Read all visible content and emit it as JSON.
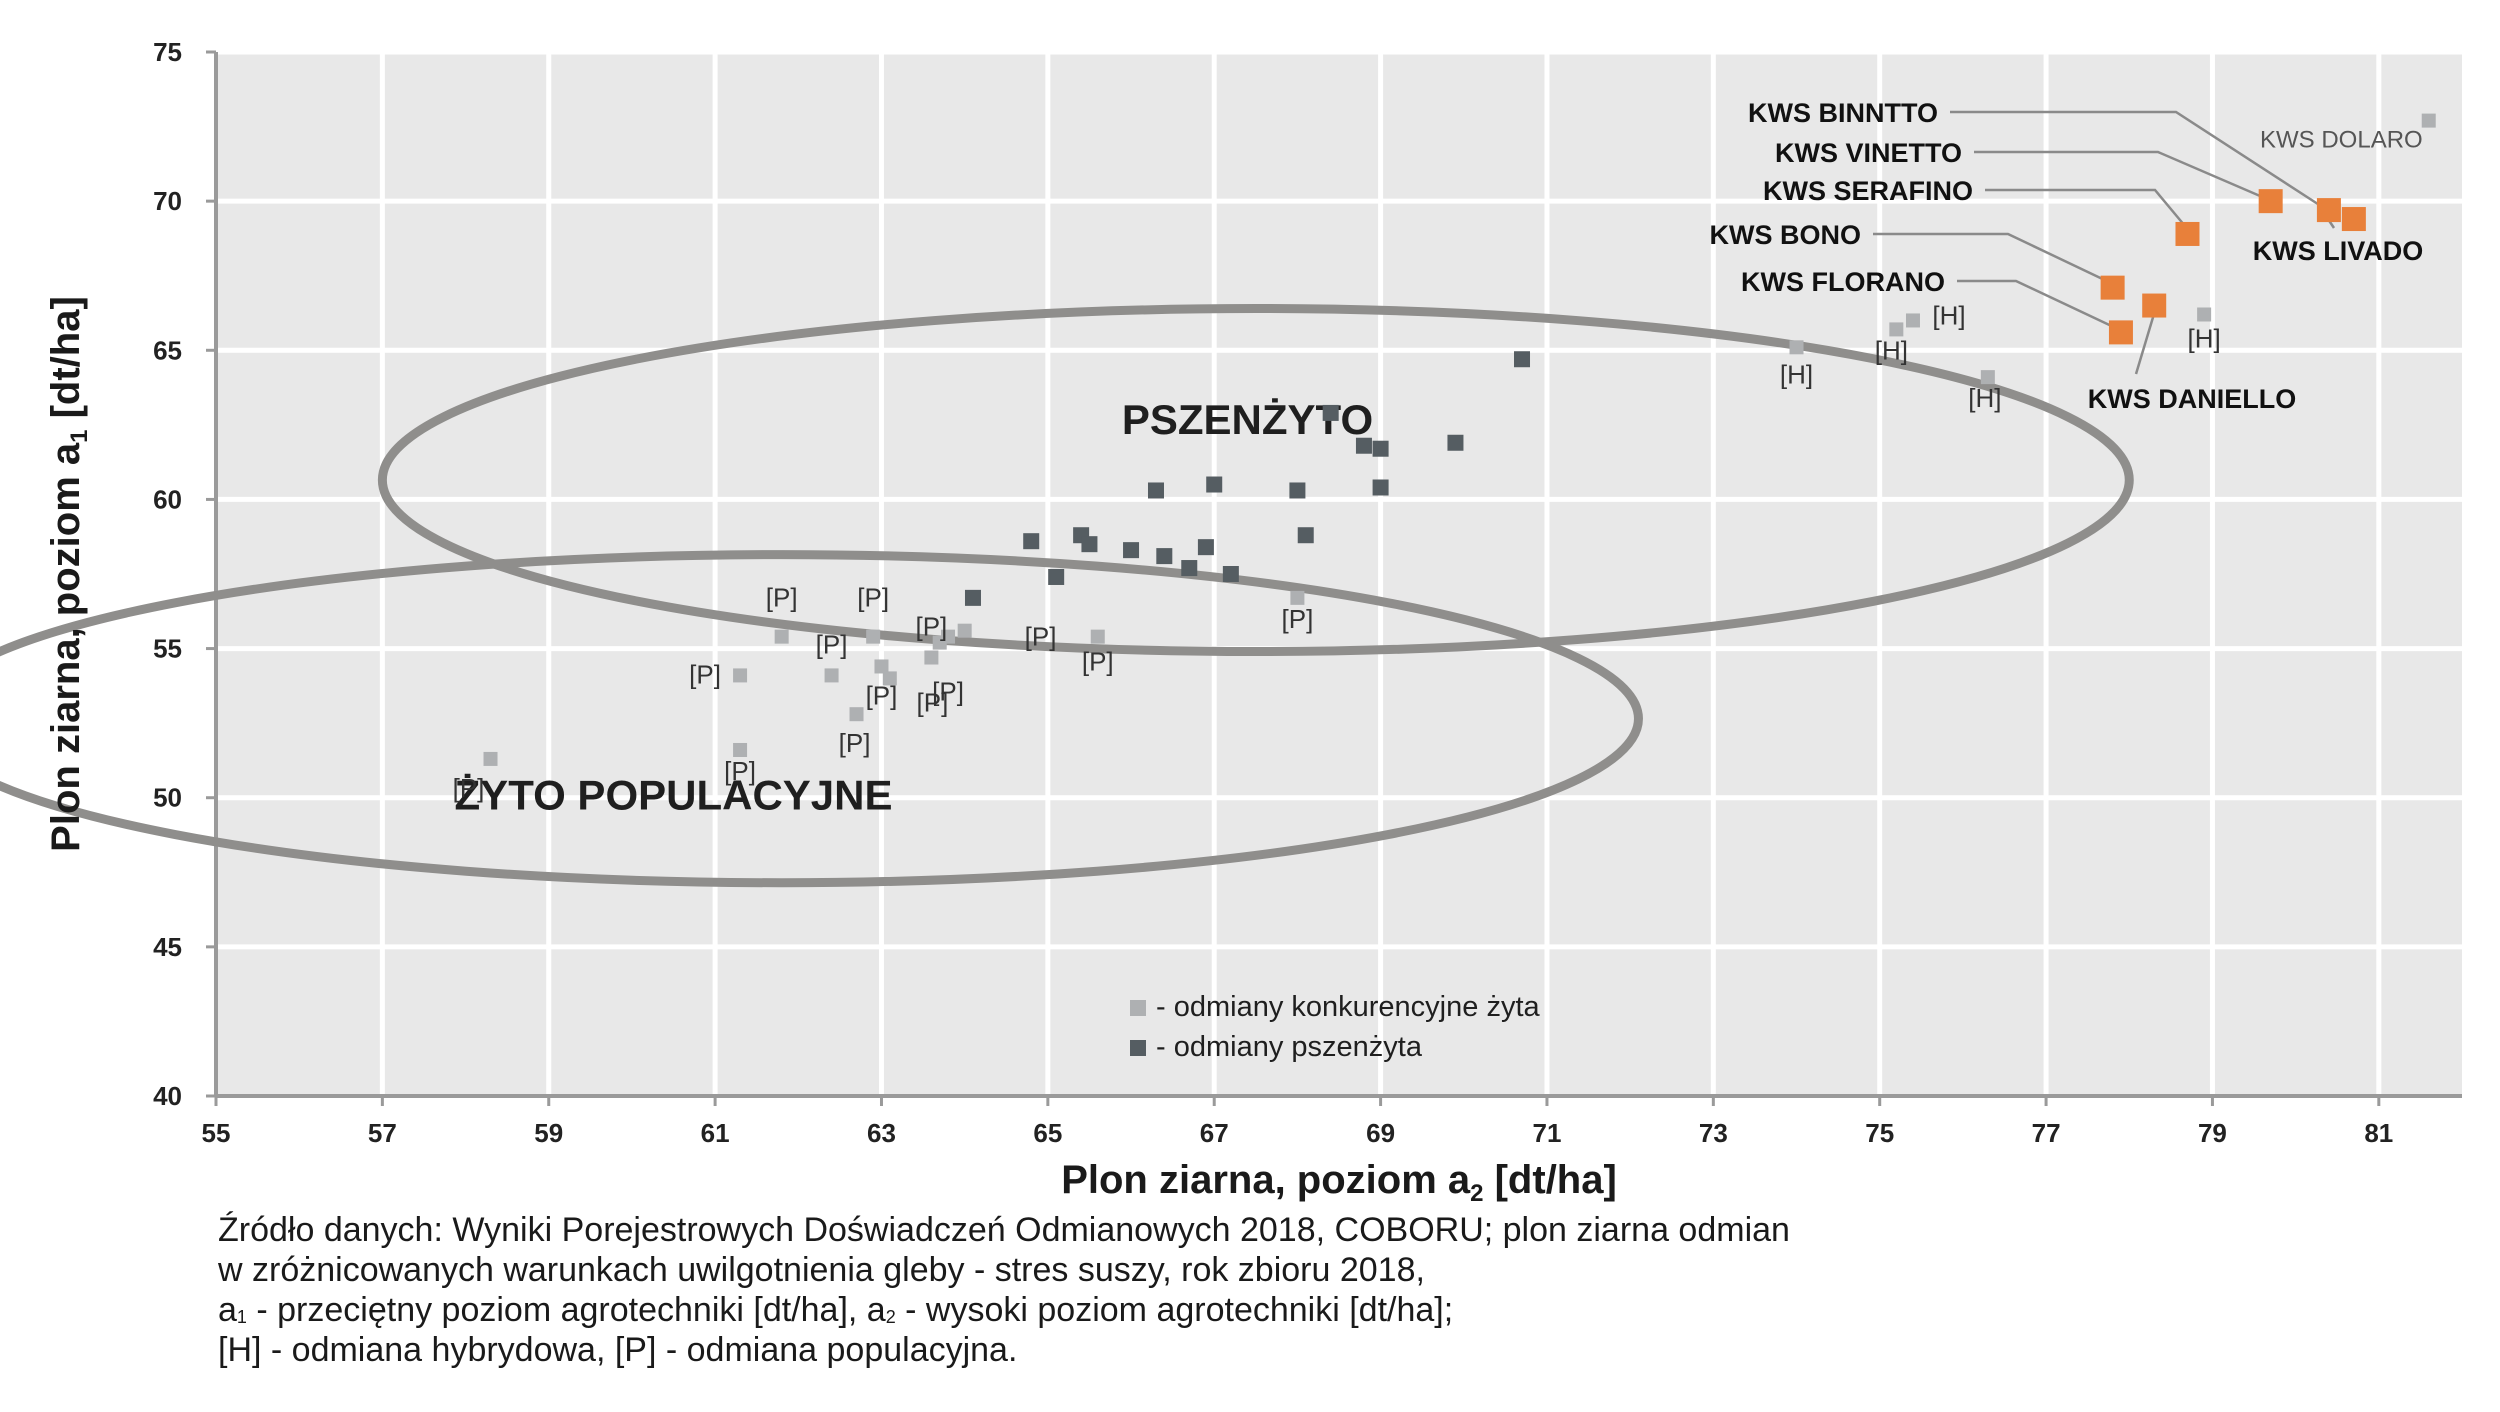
{
  "chart_data": {
    "type": "scatter",
    "title": "",
    "xlabel": "Plon ziarna, poziom a",
    "xlabel_sub": "2",
    "xlabel_unit": " [dt/ha]",
    "ylabel": "Plon ziarna, poziom a",
    "ylabel_sub": "1",
    "ylabel_unit": " [dt/ha]",
    "xlim": [
      55,
      82
    ],
    "ylim": [
      40,
      75
    ],
    "xticks": [
      55,
      57,
      59,
      61,
      63,
      65,
      67,
      69,
      71,
      73,
      75,
      77,
      79,
      81
    ],
    "yticks": [
      40,
      45,
      50,
      55,
      60,
      65,
      70,
      75
    ],
    "grid": true,
    "background": "#e8e8e8",
    "series": [
      {
        "name": "- odmiany konkurencyjne żyta",
        "color": "#aeb0b2",
        "points": [
          {
            "x": 58.3,
            "y": 51.3,
            "label": "[P]"
          },
          {
            "x": 61.3,
            "y": 54.1,
            "label": "[P]"
          },
          {
            "x": 61.3,
            "y": 51.6,
            "label": "[P]"
          },
          {
            "x": 61.8,
            "y": 55.4,
            "label": "[P]"
          },
          {
            "x": 62.4,
            "y": 54.1,
            "label": "[P]"
          },
          {
            "x": 62.7,
            "y": 52.8,
            "label": "[P]"
          },
          {
            "x": 62.9,
            "y": 55.4,
            "label": "[P]"
          },
          {
            "x": 63.0,
            "y": 54.4,
            "label": "[P]"
          },
          {
            "x": 63.1,
            "y": 54.0,
            "label": ""
          },
          {
            "x": 63.6,
            "y": 54.7,
            "label": "[P]"
          },
          {
            "x": 63.7,
            "y": 55.2,
            "label": ""
          },
          {
            "x": 63.8,
            "y": 55.4,
            "label": "[P]"
          },
          {
            "x": 64.0,
            "y": 55.6,
            "label": ""
          },
          {
            "x": 65.6,
            "y": 55.4,
            "label": "[P]"
          },
          {
            "x": 68.0,
            "y": 56.7,
            "label": "[P]"
          },
          {
            "x": 74.0,
            "y": 65.1,
            "label": "[H]"
          },
          {
            "x": 75.2,
            "y": 65.7,
            "label": "[H]"
          },
          {
            "x": 75.4,
            "y": 66.0,
            "label": "[H]"
          },
          {
            "x": 76.3,
            "y": 64.1,
            "label": "[H]"
          },
          {
            "x": 78.9,
            "y": 66.2,
            "label": "[H]"
          },
          {
            "x": 81.6,
            "y": 72.7,
            "label": "KWS DOLARO"
          }
        ]
      },
      {
        "name": "- odmiany pszenżyta",
        "color": "#555d62",
        "points": [
          {
            "x": 64.1,
            "y": 56.7
          },
          {
            "x": 64.8,
            "y": 58.6
          },
          {
            "x": 65.1,
            "y": 57.4
          },
          {
            "x": 65.4,
            "y": 58.8
          },
          {
            "x": 65.5,
            "y": 58.5
          },
          {
            "x": 66.0,
            "y": 58.3
          },
          {
            "x": 66.3,
            "y": 60.3
          },
          {
            "x": 66.4,
            "y": 58.1
          },
          {
            "x": 66.7,
            "y": 57.7
          },
          {
            "x": 66.9,
            "y": 58.4
          },
          {
            "x": 67.0,
            "y": 60.5
          },
          {
            "x": 67.2,
            "y": 57.5
          },
          {
            "x": 68.0,
            "y": 60.3
          },
          {
            "x": 68.1,
            "y": 58.8
          },
          {
            "x": 68.4,
            "y": 62.9
          },
          {
            "x": 68.8,
            "y": 61.8
          },
          {
            "x": 69.0,
            "y": 61.7
          },
          {
            "x": 69.0,
            "y": 60.4
          },
          {
            "x": 69.9,
            "y": 61.9
          },
          {
            "x": 70.7,
            "y": 64.7
          }
        ]
      },
      {
        "name": "KWS",
        "color": "#e8803a",
        "points": [
          {
            "x": 79.7,
            "y": 70.0,
            "label": "KWS VINETTO"
          },
          {
            "x": 80.4,
            "y": 69.7,
            "label": "KWS BINNTTO"
          },
          {
            "x": 80.7,
            "y": 69.4,
            "label": "KWS LIVADO"
          },
          {
            "x": 78.7,
            "y": 68.9,
            "label": "KWS SERAFINO"
          },
          {
            "x": 77.8,
            "y": 67.1,
            "label": "KWS BONO"
          },
          {
            "x": 78.3,
            "y": 66.5,
            "label": "KWS DANIELLO"
          },
          {
            "x": 77.9,
            "y": 65.6,
            "label": "KWS FLORANO"
          }
        ]
      }
    ],
    "groups": [
      {
        "label": "PSZENŻYTO"
      },
      {
        "label": "ŻYTO POPULACYJNE"
      }
    ],
    "legend_position": "bottom-center"
  },
  "source_note": {
    "line1": "Źródło danych: Wyniki Porejestrowych Doświadczeń Odmianowych 2018, COBORU; plon ziarna odmian",
    "line2": "w zróżnicowanych warunkach uwilgotnienia gleby - stres suszy, rok zbioru 2018,",
    "line3_a": "a",
    "line3_a_sub": "1",
    "line3_mid": " - przeciętny poziom agrotechniki [dt/ha], a",
    "line3_b_sub": "2",
    "line3_end": " - wysoki poziom agrotechniki [dt/ha];",
    "line4": "[H] - odmiana hybrydowa, [P] - odmiana populacyjna."
  }
}
